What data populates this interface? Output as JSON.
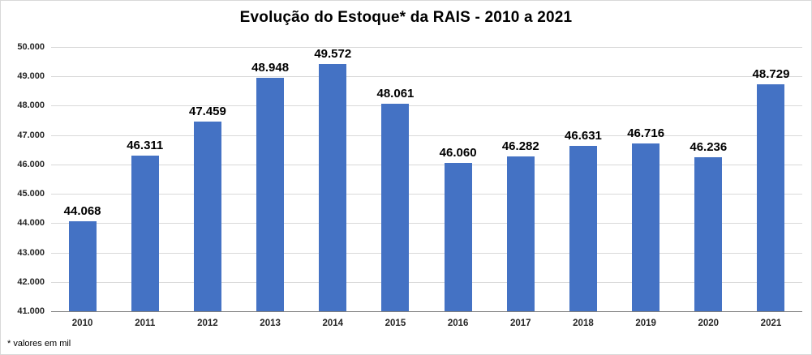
{
  "chart_data": {
    "type": "bar",
    "title": "Evolução do Estoque* da RAIS - 2010 a 2021",
    "footnote": "* valores em mil",
    "categories": [
      "2010",
      "2011",
      "2012",
      "2013",
      "2014",
      "2015",
      "2016",
      "2017",
      "2018",
      "2019",
      "2020",
      "2021"
    ],
    "values": [
      44068,
      46311,
      47459,
      48948,
      49572,
      48061,
      46060,
      46282,
      46631,
      46716,
      46236,
      48729
    ],
    "value_labels": [
      "44.068",
      "46.311",
      "47.459",
      "48.948",
      "49.572",
      "48.061",
      "46.060",
      "46.282",
      "46.631",
      "46.716",
      "46.236",
      "48.729"
    ],
    "ylim": [
      41000,
      50000
    ],
    "ytick_values": [
      41000,
      42000,
      43000,
      44000,
      45000,
      46000,
      47000,
      48000,
      49000,
      50000
    ],
    "ytick_labels": [
      "41.000",
      "42.000",
      "43.000",
      "44.000",
      "45.000",
      "46.000",
      "47.000",
      "48.000",
      "49.000",
      "50.000"
    ],
    "xlabel": "",
    "ylabel": "",
    "grid": true,
    "legend": "none",
    "bar_color": "#4472C4",
    "gridline_color": "#d9d9d9",
    "axis_line_color": "#7f7f7f"
  }
}
